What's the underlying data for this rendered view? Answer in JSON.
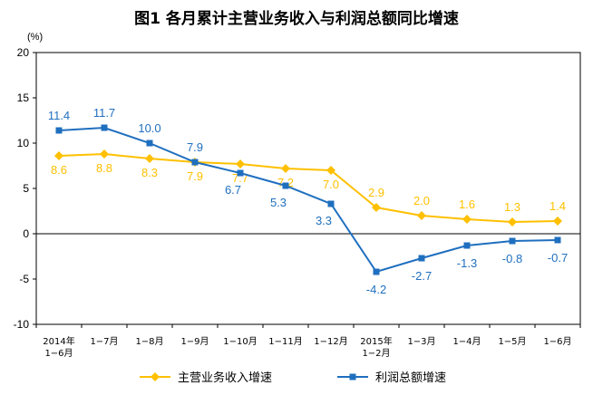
{
  "title": "图1 各月累计主营业务收入与利润总额同比增速",
  "chart_data": {
    "type": "line",
    "title": "图1 各月累计主营业务收入与利润总额同比增速",
    "y_unit": "(%)",
    "categories": [
      [
        "2014年",
        "1−6月"
      ],
      [
        "1−7月"
      ],
      [
        "1−8月"
      ],
      [
        "1−9月"
      ],
      [
        "1−10月"
      ],
      [
        "1−11月"
      ],
      [
        "1−12月"
      ],
      [
        "2015年",
        "1−2月"
      ],
      [
        "1−3月"
      ],
      [
        "1−4月"
      ],
      [
        "1−5月"
      ],
      [
        "1−6月"
      ]
    ],
    "ylim": [
      -10,
      20
    ],
    "yticks": [
      "20",
      "15",
      "10",
      "5",
      "0",
      "-5",
      "-10"
    ],
    "ytick_values": [
      20,
      15,
      10,
      5,
      0,
      -5,
      -10
    ],
    "grid": false,
    "legend_position": "bottom",
    "series": [
      {
        "name": "主营业务收入增速",
        "color": "#FFC000",
        "marker": "diamond",
        "values": [
          8.6,
          8.8,
          8.3,
          7.9,
          7.7,
          7.2,
          7.0,
          2.9,
          2.0,
          1.6,
          1.3,
          1.4
        ],
        "labels": [
          "8.6",
          "8.8",
          "8.3",
          "7.9",
          "7.7",
          "7.2",
          "7.0",
          "2.9",
          "2.0",
          "1.6",
          "1.3",
          "1.4"
        ]
      },
      {
        "name": "利润总额增速",
        "color": "#1F6FBF",
        "marker": "square",
        "values": [
          11.4,
          11.7,
          10.0,
          7.9,
          6.7,
          5.3,
          3.3,
          -4.2,
          -2.7,
          -1.3,
          -0.8,
          -0.7
        ],
        "labels": [
          "11.4",
          "11.7",
          "10.0",
          "7.9",
          "6.7",
          "5.3",
          "3.3",
          "-4.2",
          "-2.7",
          "-1.3",
          "-0.8",
          "-0.7"
        ]
      }
    ]
  }
}
